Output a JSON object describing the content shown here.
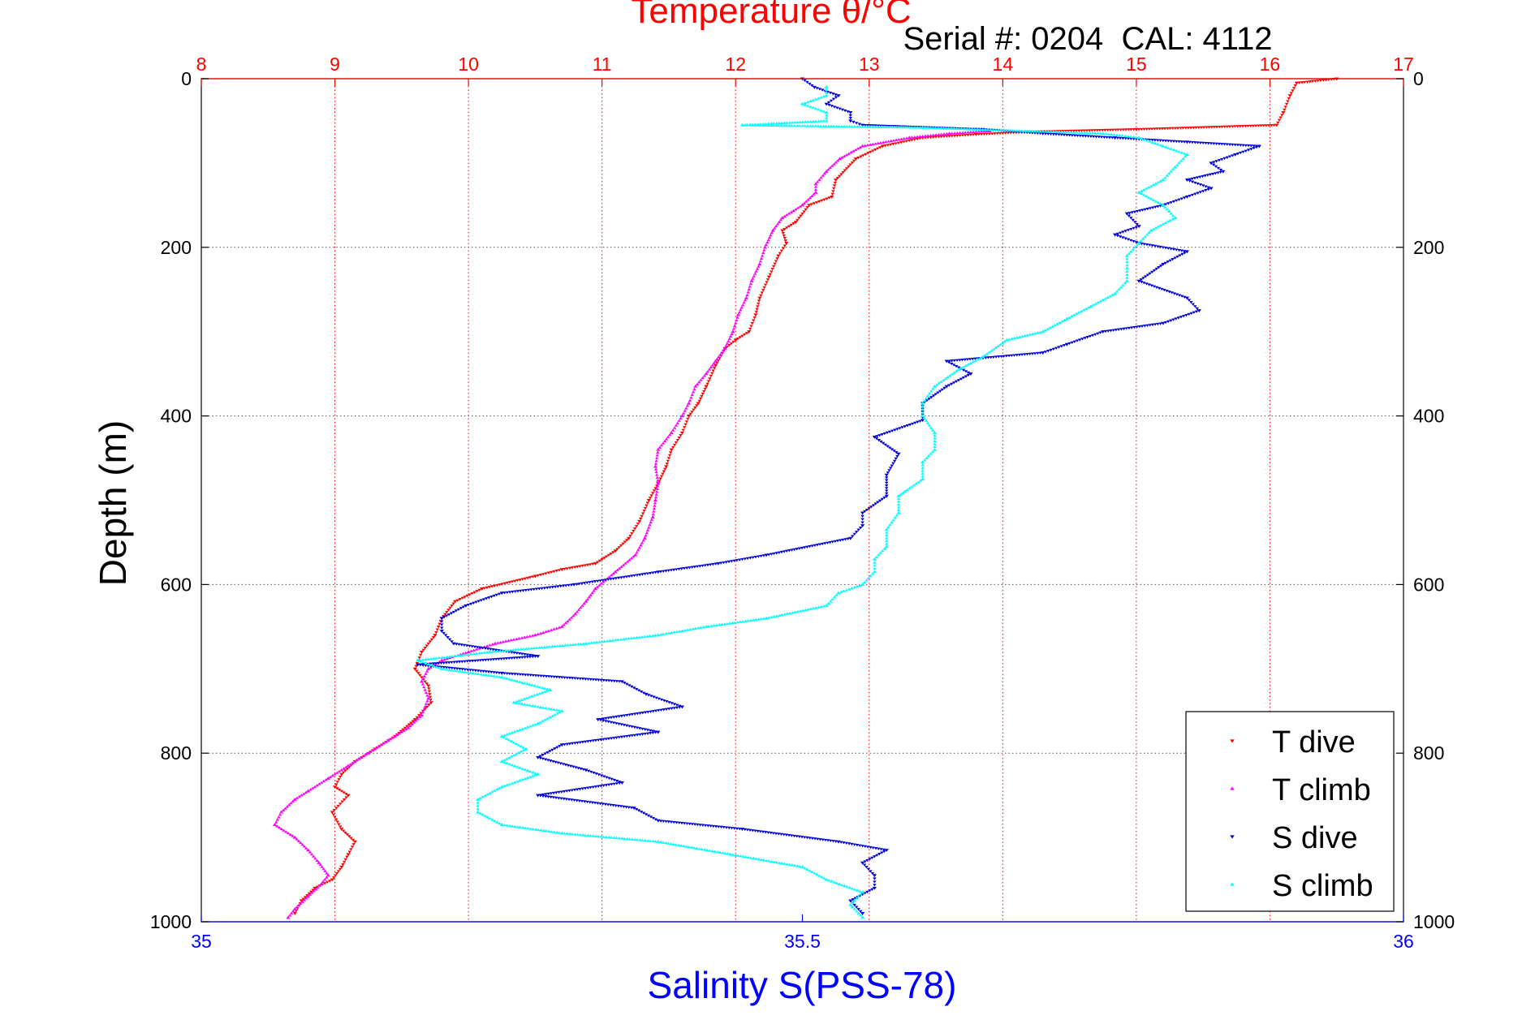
{
  "chart_data": {
    "type": "scatter",
    "title": "Temperature θ/°C",
    "subtitle": "Serial #: 0204  CAL: 4112",
    "ylabel": "Depth (m)",
    "xlabel_bottom": "Salinity S(PSS-78)",
    "x_top": {
      "label": "Temperature θ/°C",
      "lim": [
        8,
        17
      ],
      "ticks": [
        "8",
        "9",
        "10",
        "11",
        "12",
        "13",
        "14",
        "15",
        "16",
        "17"
      ]
    },
    "x_bottom": {
      "lim": [
        35,
        36
      ],
      "ticks": [
        "35",
        "35.5",
        "36"
      ]
    },
    "y": {
      "lim": [
        0,
        1000
      ],
      "ticks": [
        "0",
        "200",
        "400",
        "600",
        "800",
        "1000"
      ],
      "reversed": true
    },
    "grid": true,
    "legend": "bottom-right",
    "colors": {
      "temperature_axis": "#ff0000",
      "salinity_axis": "#0000ff",
      "t_dive": "#ff0000",
      "t_climb": "#ff00ff",
      "s_dive": "#0000dd",
      "s_climb": "#00ffff"
    },
    "series": [
      {
        "name": "T dive",
        "axis": "temperature",
        "marker": "triangle-down",
        "points": [
          [
            16.5,
            0
          ],
          [
            16.2,
            5
          ],
          [
            16.15,
            20
          ],
          [
            16.1,
            40
          ],
          [
            16.05,
            55
          ],
          [
            15.0,
            60
          ],
          [
            14.2,
            63
          ],
          [
            13.8,
            66
          ],
          [
            13.4,
            70
          ],
          [
            13.1,
            80
          ],
          [
            12.9,
            95
          ],
          [
            12.75,
            120
          ],
          [
            12.72,
            140
          ],
          [
            12.55,
            150
          ],
          [
            12.45,
            170
          ],
          [
            12.35,
            180
          ],
          [
            12.38,
            195
          ],
          [
            12.32,
            210
          ],
          [
            12.25,
            235
          ],
          [
            12.18,
            260
          ],
          [
            12.15,
            280
          ],
          [
            12.1,
            300
          ],
          [
            12.0,
            310
          ],
          [
            11.92,
            320
          ],
          [
            11.85,
            340
          ],
          [
            11.78,
            365
          ],
          [
            11.72,
            385
          ],
          [
            11.65,
            400
          ],
          [
            11.6,
            420
          ],
          [
            11.52,
            440
          ],
          [
            11.48,
            460
          ],
          [
            11.42,
            480
          ],
          [
            11.35,
            500
          ],
          [
            11.28,
            525
          ],
          [
            11.2,
            545
          ],
          [
            11.1,
            560
          ],
          [
            10.95,
            575
          ],
          [
            10.7,
            582
          ],
          [
            10.5,
            590
          ],
          [
            10.1,
            605
          ],
          [
            9.9,
            620
          ],
          [
            9.8,
            640
          ],
          [
            9.75,
            660
          ],
          [
            9.65,
            680
          ],
          [
            9.6,
            700
          ],
          [
            9.7,
            720
          ],
          [
            9.72,
            740
          ],
          [
            9.6,
            760
          ],
          [
            9.45,
            780
          ],
          [
            9.3,
            795
          ],
          [
            9.15,
            810
          ],
          [
            9.05,
            825
          ],
          [
            9.0,
            840
          ],
          [
            9.1,
            850
          ],
          [
            8.98,
            870
          ],
          [
            9.05,
            890
          ],
          [
            9.15,
            905
          ],
          [
            9.1,
            920
          ],
          [
            9.05,
            935
          ],
          [
            8.98,
            950
          ],
          [
            8.85,
            960
          ],
          [
            8.75,
            975
          ],
          [
            8.7,
            990
          ]
        ]
      },
      {
        "name": "T climb",
        "axis": "temperature",
        "marker": "triangle-up",
        "points": [
          [
            8.65,
            995
          ],
          [
            8.7,
            985
          ],
          [
            8.8,
            970
          ],
          [
            8.9,
            955
          ],
          [
            8.95,
            945
          ],
          [
            8.88,
            930
          ],
          [
            8.8,
            915
          ],
          [
            8.7,
            900
          ],
          [
            8.55,
            885
          ],
          [
            8.6,
            870
          ],
          [
            8.7,
            855
          ],
          [
            8.8,
            845
          ],
          [
            8.95,
            830
          ],
          [
            9.1,
            815
          ],
          [
            9.25,
            800
          ],
          [
            9.4,
            785
          ],
          [
            9.55,
            770
          ],
          [
            9.65,
            755
          ],
          [
            9.7,
            735
          ],
          [
            9.65,
            715
          ],
          [
            9.7,
            700
          ],
          [
            9.8,
            690
          ],
          [
            10.0,
            680
          ],
          [
            10.2,
            670
          ],
          [
            10.5,
            660
          ],
          [
            10.7,
            650
          ],
          [
            10.8,
            635
          ],
          [
            10.88,
            620
          ],
          [
            10.95,
            605
          ],
          [
            11.1,
            585
          ],
          [
            11.25,
            565
          ],
          [
            11.32,
            545
          ],
          [
            11.38,
            520
          ],
          [
            11.4,
            500
          ],
          [
            11.42,
            480
          ],
          [
            11.4,
            460
          ],
          [
            11.42,
            440
          ],
          [
            11.52,
            420
          ],
          [
            11.6,
            400
          ],
          [
            11.65,
            385
          ],
          [
            11.7,
            365
          ],
          [
            11.78,
            350
          ],
          [
            11.85,
            335
          ],
          [
            11.92,
            320
          ],
          [
            11.98,
            300
          ],
          [
            12.02,
            280
          ],
          [
            12.08,
            260
          ],
          [
            12.12,
            240
          ],
          [
            12.18,
            220
          ],
          [
            12.22,
            200
          ],
          [
            12.28,
            180
          ],
          [
            12.35,
            165
          ],
          [
            12.5,
            150
          ],
          [
            12.6,
            135
          ],
          [
            12.6,
            125
          ],
          [
            12.68,
            110
          ],
          [
            12.78,
            95
          ],
          [
            12.95,
            80
          ],
          [
            13.3,
            70
          ],
          [
            13.6,
            65
          ],
          [
            13.9,
            62
          ]
        ]
      },
      {
        "name": "S dive",
        "axis": "salinity",
        "marker": "triangle-down",
        "points": [
          [
            35.5,
            0
          ],
          [
            35.51,
            10
          ],
          [
            35.53,
            20
          ],
          [
            35.52,
            30
          ],
          [
            35.54,
            40
          ],
          [
            35.54,
            50
          ],
          [
            35.55,
            55
          ],
          [
            35.65,
            60
          ],
          [
            35.7,
            65
          ],
          [
            35.76,
            70
          ],
          [
            35.82,
            75
          ],
          [
            35.88,
            80
          ],
          [
            35.86,
            90
          ],
          [
            35.84,
            100
          ],
          [
            35.85,
            110
          ],
          [
            35.82,
            120
          ],
          [
            35.84,
            130
          ],
          [
            35.82,
            140
          ],
          [
            35.8,
            150
          ],
          [
            35.77,
            160
          ],
          [
            35.78,
            175
          ],
          [
            35.76,
            185
          ],
          [
            35.78,
            195
          ],
          [
            35.82,
            205
          ],
          [
            35.8,
            220
          ],
          [
            35.78,
            240
          ],
          [
            35.82,
            260
          ],
          [
            35.83,
            275
          ],
          [
            35.8,
            290
          ],
          [
            35.75,
            300
          ],
          [
            35.72,
            315
          ],
          [
            35.7,
            325
          ],
          [
            35.62,
            335
          ],
          [
            35.64,
            350
          ],
          [
            35.62,
            365
          ],
          [
            35.6,
            385
          ],
          [
            35.6,
            405
          ],
          [
            35.56,
            425
          ],
          [
            35.58,
            445
          ],
          [
            35.57,
            470
          ],
          [
            35.57,
            495
          ],
          [
            35.55,
            515
          ],
          [
            35.55,
            530
          ],
          [
            35.54,
            545
          ],
          [
            35.47,
            565
          ],
          [
            35.43,
            575
          ],
          [
            35.38,
            585
          ],
          [
            35.31,
            600
          ],
          [
            35.25,
            610
          ],
          [
            35.22,
            625
          ],
          [
            35.2,
            640
          ],
          [
            35.2,
            655
          ],
          [
            35.21,
            670
          ],
          [
            35.28,
            685
          ],
          [
            35.18,
            695
          ],
          [
            35.25,
            705
          ],
          [
            35.35,
            715
          ],
          [
            35.37,
            730
          ],
          [
            35.4,
            745
          ],
          [
            35.33,
            760
          ],
          [
            35.38,
            775
          ],
          [
            35.3,
            790
          ],
          [
            35.28,
            805
          ],
          [
            35.32,
            820
          ],
          [
            35.35,
            835
          ],
          [
            35.28,
            850
          ],
          [
            35.36,
            865
          ],
          [
            35.38,
            880
          ],
          [
            35.45,
            890
          ],
          [
            35.53,
            905
          ],
          [
            35.57,
            915
          ],
          [
            35.55,
            930
          ],
          [
            35.56,
            945
          ],
          [
            35.56,
            960
          ],
          [
            35.54,
            975
          ],
          [
            35.55,
            990
          ]
        ]
      },
      {
        "name": "S climb",
        "axis": "salinity",
        "marker": "triangle-up",
        "points": [
          [
            35.55,
            995
          ],
          [
            35.54,
            980
          ],
          [
            35.55,
            965
          ],
          [
            35.52,
            950
          ],
          [
            35.5,
            935
          ],
          [
            35.44,
            920
          ],
          [
            35.38,
            905
          ],
          [
            35.3,
            895
          ],
          [
            35.25,
            885
          ],
          [
            35.23,
            870
          ],
          [
            35.23,
            855
          ],
          [
            35.25,
            840
          ],
          [
            35.28,
            825
          ],
          [
            35.25,
            810
          ],
          [
            35.27,
            795
          ],
          [
            35.25,
            780
          ],
          [
            35.28,
            765
          ],
          [
            35.3,
            750
          ],
          [
            35.26,
            740
          ],
          [
            35.29,
            725
          ],
          [
            35.25,
            710
          ],
          [
            35.2,
            700
          ],
          [
            35.18,
            690
          ],
          [
            35.24,
            680
          ],
          [
            35.32,
            670
          ],
          [
            35.38,
            660
          ],
          [
            35.42,
            650
          ],
          [
            35.47,
            640
          ],
          [
            35.52,
            625
          ],
          [
            35.53,
            610
          ],
          [
            35.55,
            600
          ],
          [
            35.56,
            585
          ],
          [
            35.56,
            570
          ],
          [
            35.57,
            555
          ],
          [
            35.57,
            535
          ],
          [
            35.58,
            515
          ],
          [
            35.58,
            495
          ],
          [
            35.6,
            475
          ],
          [
            35.6,
            455
          ],
          [
            35.61,
            440
          ],
          [
            35.61,
            420
          ],
          [
            35.6,
            400
          ],
          [
            35.6,
            385
          ],
          [
            35.61,
            365
          ],
          [
            35.63,
            345
          ],
          [
            35.65,
            330
          ],
          [
            35.67,
            310
          ],
          [
            35.7,
            300
          ],
          [
            35.72,
            285
          ],
          [
            35.74,
            270
          ],
          [
            35.76,
            255
          ],
          [
            35.77,
            240
          ],
          [
            35.77,
            225
          ],
          [
            35.77,
            210
          ],
          [
            35.78,
            195
          ],
          [
            35.79,
            180
          ],
          [
            35.81,
            165
          ],
          [
            35.8,
            150
          ],
          [
            35.78,
            135
          ],
          [
            35.8,
            120
          ],
          [
            35.81,
            105
          ],
          [
            35.82,
            90
          ],
          [
            35.8,
            80
          ],
          [
            35.78,
            70
          ],
          [
            35.75,
            65
          ],
          [
            35.6,
            58
          ],
          [
            35.45,
            55
          ],
          [
            35.52,
            50
          ],
          [
            35.52,
            40
          ],
          [
            35.5,
            30
          ],
          [
            35.52,
            20
          ],
          [
            35.52,
            10
          ]
        ]
      }
    ]
  }
}
